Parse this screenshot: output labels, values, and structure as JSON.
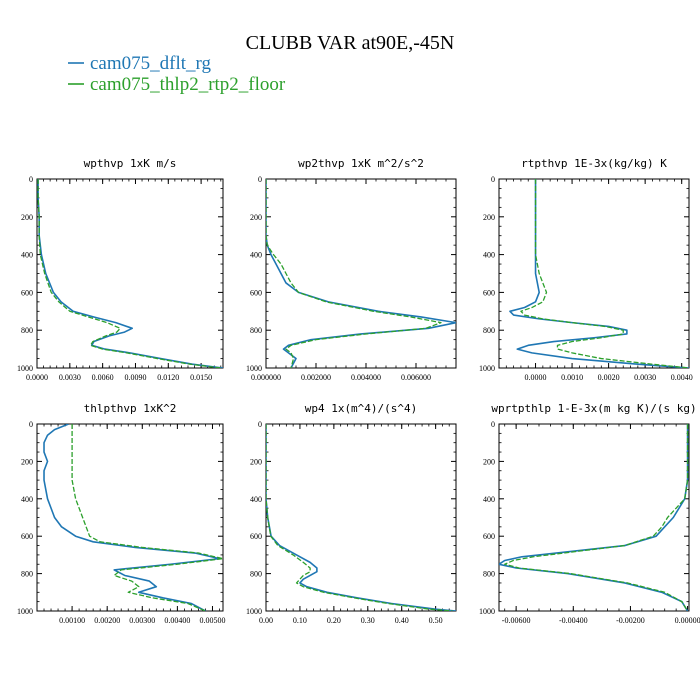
{
  "figure": {
    "title": "CLUBB VAR at90E,-45N",
    "legend": [
      {
        "name": "cam075_dflt_rg",
        "color": "#1f77b4",
        "dash": "solid"
      },
      {
        "name": "cam075_thlp2_rtp2_floor",
        "color": "#2ca02c",
        "dash": "dashed"
      }
    ]
  },
  "chart_data": [
    {
      "type": "line",
      "title": "wpthvp  1xK m/s",
      "xlim": [
        0.0,
        0.017
      ],
      "ylim": [
        1000,
        0
      ],
      "xticks": [
        0.0,
        0.003,
        0.006,
        0.009,
        0.012,
        0.015
      ],
      "xtick_labels": [
        "0.0000",
        "0.0030",
        "0.0060",
        "0.0090",
        "0.0120",
        "0.0150"
      ],
      "yticks": [
        0,
        200,
        400,
        600,
        800,
        1000
      ],
      "ytick_labels": [
        "0",
        "200",
        "400",
        "600",
        "800",
        "1000"
      ],
      "y": [
        0,
        100,
        200,
        300,
        400,
        500,
        600,
        650,
        700,
        730,
        760,
        790,
        810,
        830,
        860,
        880,
        900,
        920,
        950,
        980,
        1000
      ],
      "series": [
        {
          "name": "cam075_dflt_rg",
          "x": [
            0.0001,
            0.0001,
            0.0002,
            0.0002,
            0.0004,
            0.0008,
            0.0015,
            0.0022,
            0.0033,
            0.0052,
            0.0072,
            0.0087,
            0.008,
            0.0066,
            0.0052,
            0.005,
            0.0062,
            0.0085,
            0.0113,
            0.0142,
            0.017
          ]
        },
        {
          "name": "cam075_thlp2_rtp2_floor",
          "x": [
            0.0001,
            0.0001,
            0.0002,
            0.0002,
            0.0003,
            0.0007,
            0.0013,
            0.002,
            0.003,
            0.0047,
            0.0064,
            0.0076,
            0.0073,
            0.0063,
            0.0051,
            0.0049,
            0.006,
            0.0082,
            0.011,
            0.014,
            0.0168
          ]
        }
      ]
    },
    {
      "type": "line",
      "title": "wp2thvp  1xK m^2/s^2",
      "xlim": [
        0.0,
        0.0076
      ],
      "ylim": [
        1000,
        0
      ],
      "xticks": [
        0.0,
        0.002,
        0.004,
        0.006
      ],
      "xtick_labels": [
        "0.000000",
        "0.002000",
        "0.004000",
        "0.006000"
      ],
      "yticks": [
        0,
        200,
        400,
        600,
        800,
        1000
      ],
      "ytick_labels": [
        "0",
        "200",
        "400",
        "600",
        "800",
        "1000"
      ],
      "y": [
        0,
        100,
        200,
        300,
        350,
        400,
        450,
        500,
        550,
        600,
        650,
        700,
        730,
        760,
        790,
        820,
        850,
        880,
        900,
        920,
        950,
        1000
      ],
      "series": [
        {
          "name": "cam075_dflt_rg",
          "x": [
            0.0,
            0.0,
            0.0,
            0.0,
            5e-05,
            0.0002,
            0.0004,
            0.0006,
            0.0008,
            0.0013,
            0.0025,
            0.0045,
            0.0062,
            0.0076,
            0.0065,
            0.0038,
            0.0018,
            0.0009,
            0.0007,
            0.0009,
            0.0012,
            0.001
          ]
        },
        {
          "name": "cam075_thlp2_rtp2_floor",
          "x": [
            0.0,
            0.0,
            0.0,
            0.0,
            5e-05,
            0.0003,
            0.0006,
            0.0008,
            0.001,
            0.0013,
            0.0024,
            0.0043,
            0.0058,
            0.007,
            0.0064,
            0.004,
            0.002,
            0.001,
            0.0008,
            0.001,
            0.0011,
            0.001
          ]
        }
      ]
    },
    {
      "type": "line",
      "title": "rtpthvp  1E-3x(kg/kg) K",
      "xlim": [
        -0.001,
        0.0042
      ],
      "ylim": [
        1000,
        0
      ],
      "xticks": [
        0.0,
        0.001,
        0.002,
        0.003,
        0.004
      ],
      "xtick_labels": [
        "0.0000",
        "0.0010",
        "0.0020",
        "0.0030",
        "0.0040"
      ],
      "yticks": [
        0,
        200,
        400,
        600,
        800,
        1000
      ],
      "ytick_labels": [
        "0",
        "200",
        "400",
        "600",
        "800",
        "1000"
      ],
      "y": [
        0,
        100,
        200,
        300,
        400,
        500,
        600,
        650,
        680,
        700,
        720,
        740,
        760,
        780,
        800,
        820,
        840,
        860,
        880,
        900,
        920,
        950,
        980,
        1000
      ],
      "series": [
        {
          "name": "cam075_dflt_rg",
          "x": [
            0.0,
            0.0,
            0.0,
            0.0,
            0.0,
            0.0,
            0.0001,
            0.0,
            -0.0003,
            -0.0007,
            -0.0006,
            0.0001,
            0.001,
            0.002,
            0.0025,
            0.0025,
            0.0016,
            0.0005,
            -0.0002,
            -0.0005,
            -0.0001,
            0.001,
            0.0028,
            0.0042
          ]
        },
        {
          "name": "cam075_thlp2_rtp2_floor",
          "x": [
            0.0,
            0.0,
            0.0,
            0.0,
            0.0,
            0.0001,
            0.0003,
            0.0002,
            -0.0001,
            -0.0004,
            -0.0003,
            0.0002,
            0.001,
            0.0019,
            0.0024,
            0.0024,
            0.0018,
            0.001,
            0.0006,
            0.0006,
            0.001,
            0.0018,
            0.0032,
            0.0042
          ]
        }
      ]
    },
    {
      "type": "line",
      "title": "thlpthvp  1xK^2",
      "xlim": [
        0.0,
        0.0053
      ],
      "ylim": [
        1000,
        0
      ],
      "xticks": [
        0.001,
        0.002,
        0.003,
        0.004,
        0.005
      ],
      "xtick_labels": [
        "0.00100",
        "0.00200",
        "0.00300",
        "0.00400",
        "0.00500"
      ],
      "yticks": [
        0,
        200,
        400,
        600,
        800,
        1000
      ],
      "ytick_labels": [
        "0",
        "200",
        "400",
        "600",
        "800",
        "1000"
      ],
      "y": [
        0,
        30,
        60,
        100,
        150,
        200,
        250,
        300,
        400,
        450,
        500,
        550,
        600,
        630,
        660,
        690,
        720,
        750,
        780,
        810,
        840,
        870,
        900,
        930,
        960,
        1000
      ],
      "series": [
        {
          "name": "cam075_dflt_rg",
          "x": [
            0.0009,
            0.0005,
            0.0003,
            0.0002,
            0.0002,
            0.0003,
            0.0002,
            0.0002,
            0.0003,
            0.0004,
            0.0005,
            0.0007,
            0.0011,
            0.0016,
            0.0028,
            0.0045,
            0.0052,
            0.0038,
            0.0022,
            0.0025,
            0.0032,
            0.0034,
            0.0029,
            0.0036,
            0.0044,
            0.0048
          ]
        },
        {
          "name": "cam075_thlp2_rtp2_floor",
          "x": [
            0.001,
            0.001,
            0.001,
            0.001,
            0.001,
            0.001,
            0.001,
            0.001,
            0.0011,
            0.0012,
            0.0013,
            0.0014,
            0.0015,
            0.0018,
            0.003,
            0.0046,
            0.0053,
            0.004,
            0.0024,
            0.0022,
            0.0027,
            0.0029,
            0.0026,
            0.0033,
            0.0043,
            0.0048
          ]
        }
      ]
    },
    {
      "type": "line",
      "title": "wp4  1x(m^4)/(s^4)",
      "xlim": [
        0.0,
        0.56
      ],
      "ylim": [
        1000,
        0
      ],
      "xticks": [
        0.0,
        0.1,
        0.2,
        0.3,
        0.4,
        0.5
      ],
      "xtick_labels": [
        "0.00",
        "0.10",
        "0.20",
        "0.30",
        "0.40",
        "0.50"
      ],
      "yticks": [
        0,
        200,
        400,
        600,
        800,
        1000
      ],
      "ytick_labels": [
        "0",
        "200",
        "400",
        "600",
        "800",
        "1000"
      ],
      "y": [
        0,
        100,
        200,
        300,
        400,
        500,
        600,
        650,
        700,
        740,
        770,
        790,
        810,
        830,
        850,
        870,
        900,
        930,
        960,
        990,
        1000
      ],
      "series": [
        {
          "name": "cam075_dflt_rg",
          "x": [
            0.0,
            0.0,
            0.0,
            0.0,
            0.0,
            0.005,
            0.015,
            0.04,
            0.09,
            0.13,
            0.15,
            0.15,
            0.13,
            0.11,
            0.1,
            0.12,
            0.18,
            0.27,
            0.37,
            0.5,
            0.56
          ]
        },
        {
          "name": "cam075_thlp2_rtp2_floor",
          "x": [
            0.0,
            0.0,
            0.0,
            0.0,
            0.0,
            0.005,
            0.014,
            0.035,
            0.08,
            0.11,
            0.13,
            0.13,
            0.11,
            0.1,
            0.09,
            0.11,
            0.17,
            0.26,
            0.36,
            0.48,
            0.55
          ]
        }
      ]
    },
    {
      "type": "line",
      "title": "wprtpthlp  1-E-3x(m kg K)/(s kg)",
      "xlim": [
        -0.0066,
        5e-05
      ],
      "ylim": [
        1000,
        0
      ],
      "xticks": [
        -0.006,
        -0.004,
        -0.002,
        0.0
      ],
      "xtick_labels": [
        "-0.00600",
        "-0.00400",
        "-0.00200",
        "0.00000"
      ],
      "yticks": [
        0,
        200,
        400,
        600,
        800,
        1000
      ],
      "ytick_labels": [
        "0",
        "200",
        "400",
        "600",
        "800",
        "1000"
      ],
      "y": [
        0,
        100,
        200,
        300,
        400,
        450,
        500,
        550,
        600,
        650,
        680,
        710,
        730,
        750,
        770,
        800,
        850,
        900,
        950,
        1000
      ],
      "series": [
        {
          "name": "cam075_dflt_rg",
          "x": [
            0.0,
            0.0,
            0.0,
            0.0,
            -0.0001,
            -0.0003,
            -0.0005,
            -0.0008,
            -0.0011,
            -0.0022,
            -0.004,
            -0.0058,
            -0.0064,
            -0.0066,
            -0.006,
            -0.0042,
            -0.0022,
            -0.0009,
            -0.0002,
            0.0
          ]
        },
        {
          "name": "cam075_thlp2_rtp2_floor",
          "x": [
            0.0,
            0.0,
            0.0,
            0.0,
            -0.0001,
            -0.0004,
            -0.0007,
            -0.0009,
            -0.0012,
            -0.0022,
            -0.0038,
            -0.0054,
            -0.0061,
            -0.0064,
            -0.0059,
            -0.0041,
            -0.0021,
            -0.0008,
            -0.0002,
            0.0
          ]
        }
      ]
    }
  ]
}
